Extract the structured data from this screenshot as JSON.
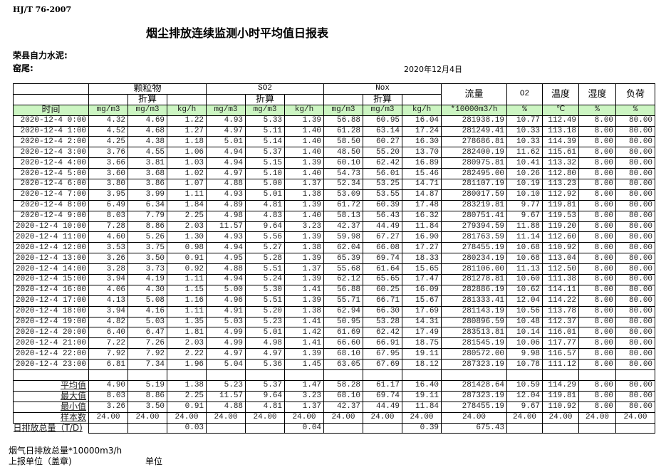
{
  "doc": {
    "standard": "HJ/T  76-2007",
    "title": "烟尘排放连续监测小时平均值日报表",
    "company": "荣县自力水泥:",
    "kiln": "窑尾:",
    "date": "2020年12月4日"
  },
  "header": {
    "groups": [
      "颗粒物",
      "SO2",
      "Nox"
    ],
    "converted": "折算",
    "flow": "流量",
    "o2": "O2",
    "temp": "温度",
    "humidity": "湿度",
    "load": "负荷",
    "time": "时间",
    "units": [
      "mg/m3",
      "mg/m3",
      "kg/h",
      "mg/m3",
      "mg/m3",
      "kg/h",
      "mg/m3",
      "mg/m3",
      "kg/h",
      "*10000m3/h",
      "%",
      "℃",
      "%",
      "%"
    ]
  },
  "rows": [
    [
      "2020-12-4 0:00",
      "4.32",
      "4.69",
      "1.22",
      "4.93",
      "5.33",
      "1.39",
      "56.88",
      "60.95",
      "16.04",
      "281938.19",
      "10.77",
      "112.49",
      "8.00",
      "80.00"
    ],
    [
      "2020-12-4 1:00",
      "4.52",
      "4.68",
      "1.27",
      "4.97",
      "5.11",
      "1.40",
      "61.28",
      "63.14",
      "17.24",
      "281249.41",
      "10.33",
      "113.18",
      "8.00",
      "80.00"
    ],
    [
      "2020-12-4 2:00",
      "4.25",
      "4.38",
      "1.18",
      "5.01",
      "5.14",
      "1.40",
      "58.50",
      "60.27",
      "16.30",
      "278686.81",
      "10.33",
      "114.39",
      "8.00",
      "80.00"
    ],
    [
      "2020-12-4 3:00",
      "3.76",
      "4.55",
      "1.06",
      "4.94",
      "5.37",
      "1.40",
      "48.50",
      "55.20",
      "13.70",
      "282400.19",
      "11.62",
      "115.61",
      "8.00",
      "80.00"
    ],
    [
      "2020-12-4 4:00",
      "3.66",
      "3.81",
      "1.03",
      "4.94",
      "5.15",
      "1.39",
      "60.10",
      "62.42",
      "16.89",
      "280975.81",
      "10.41",
      "113.32",
      "8.00",
      "80.00"
    ],
    [
      "2020-12-4 5:00",
      "3.60",
      "3.68",
      "1.02",
      "4.97",
      "5.10",
      "1.40",
      "54.73",
      "56.01",
      "15.46",
      "282495.00",
      "10.26",
      "112.80",
      "8.00",
      "80.00"
    ],
    [
      "2020-12-4 6:00",
      "3.80",
      "3.86",
      "1.07",
      "4.88",
      "5.00",
      "1.37",
      "52.34",
      "53.25",
      "14.71",
      "281107.19",
      "10.19",
      "113.23",
      "8.00",
      "80.00"
    ],
    [
      "2020-12-4 7:00",
      "3.95",
      "3.99",
      "1.11",
      "4.93",
      "5.01",
      "1.38",
      "53.09",
      "53.55",
      "14.87",
      "280017.59",
      "10.10",
      "112.92",
      "8.00",
      "80.00"
    ],
    [
      "2020-12-4 8:00",
      "6.49",
      "6.34",
      "1.84",
      "4.89",
      "4.81",
      "1.39",
      "61.72",
      "60.39",
      "17.48",
      "283219.81",
      "9.77",
      "119.81",
      "8.00",
      "80.00"
    ],
    [
      "2020-12-4 9:00",
      "8.03",
      "7.79",
      "2.25",
      "4.98",
      "4.83",
      "1.40",
      "58.13",
      "56.43",
      "16.32",
      "280751.41",
      "9.67",
      "119.53",
      "8.00",
      "80.00"
    ],
    [
      "2020-12-4 10:00",
      "7.28",
      "8.86",
      "2.03",
      "11.57",
      "9.64",
      "3.23",
      "42.37",
      "44.49",
      "11.84",
      "279394.59",
      "11.88",
      "119.20",
      "8.00",
      "80.00"
    ],
    [
      "2020-12-4 11:00",
      "4.60",
      "5.26",
      "1.30",
      "4.93",
      "5.56",
      "1.39",
      "59.98",
      "67.27",
      "16.90",
      "281763.59",
      "11.14",
      "112.60",
      "8.00",
      "80.00"
    ],
    [
      "2020-12-4 12:00",
      "3.53",
      "3.75",
      "0.98",
      "4.94",
      "5.27",
      "1.38",
      "62.04",
      "66.08",
      "17.27",
      "278455.19",
      "10.68",
      "110.92",
      "8.00",
      "80.00"
    ],
    [
      "2020-12-4 13:00",
      "3.26",
      "3.50",
      "0.91",
      "4.95",
      "5.28",
      "1.39",
      "65.39",
      "69.74",
      "18.33",
      "280234.19",
      "10.68",
      "113.04",
      "8.00",
      "80.00"
    ],
    [
      "2020-12-4 14:00",
      "3.28",
      "3.73",
      "0.92",
      "4.88",
      "5.51",
      "1.37",
      "55.68",
      "61.64",
      "15.65",
      "281106.00",
      "11.13",
      "112.50",
      "8.00",
      "80.00"
    ],
    [
      "2020-12-4 15:00",
      "3.94",
      "4.19",
      "1.11",
      "4.94",
      "5.24",
      "1.39",
      "62.12",
      "65.65",
      "17.47",
      "281278.81",
      "10.60",
      "111.38",
      "8.00",
      "80.00"
    ],
    [
      "2020-12-4 16:00",
      "4.06",
      "4.30",
      "1.15",
      "5.00",
      "5.30",
      "1.41",
      "56.88",
      "60.25",
      "16.09",
      "282886.19",
      "10.62",
      "114.11",
      "8.00",
      "80.00"
    ],
    [
      "2020-12-4 17:00",
      "4.13",
      "5.08",
      "1.16",
      "4.96",
      "5.51",
      "1.39",
      "55.71",
      "66.71",
      "15.67",
      "281333.41",
      "12.04",
      "114.22",
      "8.00",
      "80.00"
    ],
    [
      "2020-12-4 18:00",
      "3.94",
      "4.16",
      "1.11",
      "4.91",
      "5.20",
      "1.38",
      "62.94",
      "66.30",
      "17.69",
      "281143.19",
      "10.56",
      "113.78",
      "8.00",
      "80.00"
    ],
    [
      "2020-12-4 19:00",
      "4.82",
      "5.03",
      "1.35",
      "5.03",
      "5.23",
      "1.41",
      "50.95",
      "53.28",
      "14.31",
      "280896.59",
      "10.48",
      "112.37",
      "8.00",
      "80.00"
    ],
    [
      "2020-12-4 20:00",
      "6.40",
      "6.47",
      "1.81",
      "4.99",
      "5.01",
      "1.42",
      "61.69",
      "62.42",
      "17.49",
      "283513.81",
      "10.14",
      "116.01",
      "8.00",
      "80.00"
    ],
    [
      "2020-12-4 21:00",
      "7.22",
      "7.26",
      "2.03",
      "4.99",
      "4.98",
      "1.41",
      "66.60",
      "66.91",
      "18.75",
      "281545.19",
      "10.06",
      "117.77",
      "8.00",
      "80.00"
    ],
    [
      "2020-12-4 22:00",
      "7.92",
      "7.92",
      "2.22",
      "4.97",
      "4.97",
      "1.39",
      "68.10",
      "67.95",
      "19.11",
      "280572.00",
      "9.98",
      "116.57",
      "8.00",
      "80.00"
    ],
    [
      "2020-12-4 23:00",
      "6.81",
      "7.34",
      "1.96",
      "5.04",
      "5.36",
      "1.45",
      "63.05",
      "67.69",
      "18.12",
      "287323.19",
      "10.78",
      "111.12",
      "8.00",
      "80.00"
    ]
  ],
  "summary": [
    [
      "平均值",
      "4.90",
      "5.19",
      "1.38",
      "5.23",
      "5.37",
      "1.47",
      "58.28",
      "61.17",
      "16.40",
      "281428.64",
      "10.59",
      "114.29",
      "8.00",
      "80.00"
    ],
    [
      "最大值",
      "8.03",
      "8.86",
      "2.25",
      "11.57",
      "9.64",
      "3.23",
      "68.10",
      "69.74",
      "19.11",
      "287323.19",
      "12.04",
      "119.81",
      "8.00",
      "80.00"
    ],
    [
      "最小值",
      "3.26",
      "3.50",
      "0.91",
      "4.88",
      "4.81",
      "1.37",
      "42.37",
      "44.49",
      "11.84",
      "278455.19",
      "9.67",
      "110.92",
      "8.00",
      "80.00"
    ],
    [
      "样本数",
      "24.00",
      "24.00",
      "24.00",
      "24.00",
      "24.00",
      "24.00",
      "24.00",
      "24.00",
      "24.00",
      "24.00",
      "24.00",
      "24.00",
      "24.00",
      "24.00"
    ]
  ],
  "daily_total": [
    "日排放总量（T/D)",
    "",
    "",
    "0.03",
    "",
    "",
    "0.04",
    "",
    "",
    "0.39",
    "675.43",
    "",
    "",
    "",
    ""
  ],
  "footer": {
    "flue_total": "烟气日排放总量*10000m3/h",
    "reporter": "上报单位（盖章)",
    "unit": "单位"
  }
}
